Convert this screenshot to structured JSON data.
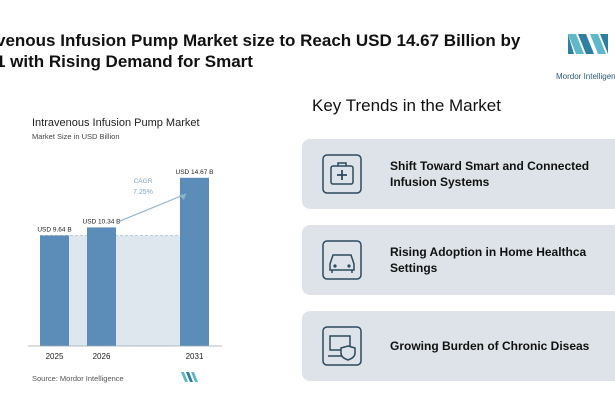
{
  "headline": {
    "line1": "venous Infusion Pump Market size to Reach USD 14.67 Billion by",
    "line2": "1 with Rising Demand for Smart"
  },
  "brand": {
    "logo_text": "Mordor Intelligen"
  },
  "chart_panel": {
    "title": "Intravenous Infusion Pump Market",
    "subtitle": "Market Size in USD Billion",
    "source": "Source: Mordor Intelligence"
  },
  "chart_data": {
    "type": "bar",
    "title": "Intravenous Infusion Pump Market",
    "ylabel": "Market Size in USD Billion",
    "categories": [
      "2025",
      "2026",
      "2031"
    ],
    "values": [
      9.64,
      10.34,
      14.67
    ],
    "value_labels": [
      "USD 9.64 B",
      "USD 10.34 B",
      "USD 14.67 B"
    ],
    "ylim": [
      0,
      15
    ],
    "annotation": {
      "label": "CAGR",
      "value": "7.25%"
    },
    "colors": {
      "bar": "#5b8db8",
      "shade": "#dfe7ee",
      "arrow": "#8fb3cc",
      "annotation": "#7fa6c4"
    }
  },
  "key_trends": {
    "title": "Key Trends in the Market",
    "items": [
      {
        "label_line1": "Shift Toward Smart and Connected",
        "label_line2": "Infusion Systems",
        "icon": "medical-kit-icon"
      },
      {
        "label_line1": "Rising Adoption in Home Healthca",
        "label_line2": "Settings",
        "icon": "car-icon"
      },
      {
        "label_line1": "Growing Burden of Chronic Diseas",
        "label_line2": "",
        "icon": "shield-monitor-icon"
      }
    ]
  }
}
